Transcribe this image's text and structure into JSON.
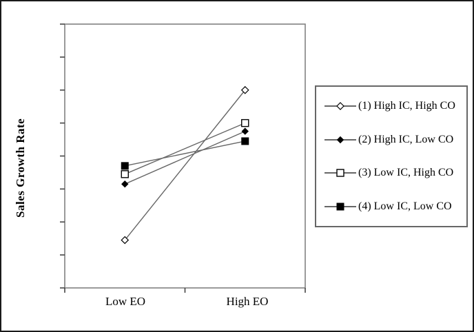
{
  "figure": {
    "y_axis_label": "Sales Growth Rate",
    "x_tick_labels": [
      "Low EO",
      "High EO"
    ]
  },
  "colors": {
    "background": "#ffffff",
    "outer_border": "#1a1a1a",
    "plot_border": "#808080",
    "tick": "#444444",
    "series_line": "#666666",
    "marker": "#000000",
    "legend_border": "#666666"
  },
  "chart_data": {
    "type": "line",
    "title": "",
    "xlabel": "",
    "ylabel": "Sales Growth Rate",
    "categories": [
      "Low EO",
      "High EO"
    ],
    "series": [
      {
        "name": "(1) High IC, High CO",
        "marker": "open-diamond",
        "values": [
          1.45,
          6.0
        ]
      },
      {
        "name": "(2) High IC, Low CO",
        "marker": "filled-diamond",
        "values": [
          3.15,
          4.75
        ]
      },
      {
        "name": "(3) Low IC, High CO",
        "marker": "open-square",
        "values": [
          3.45,
          5.0
        ]
      },
      {
        "name": "(4) Low IC, Low CO",
        "marker": "filled-square",
        "values": [
          3.7,
          4.45
        ]
      }
    ],
    "ylim": [
      0,
      8
    ],
    "y_tick_count": 9,
    "y_tick_labels_visible": false,
    "x_tick_positions": [
      "left-edge",
      "center",
      "right-edge"
    ],
    "grid": false,
    "legend_position": "right"
  }
}
